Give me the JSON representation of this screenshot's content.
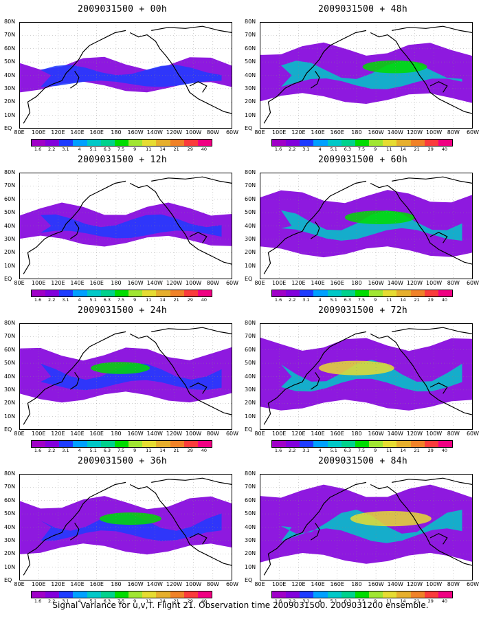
{
  "footer": "Signal Variance for u,v,T. Flight 21. Observation time 2009031500. 2009031200 ensemble.",
  "colorbar": {
    "labels": [
      "1.6",
      "2.2",
      "3.1",
      "4",
      "5.1",
      "6.3",
      "7.5",
      "9",
      "11",
      "14",
      "21",
      "29",
      "40"
    ],
    "colors": [
      "#a000c8",
      "#8200dc",
      "#1e3cff",
      "#00a0ff",
      "#00c8c8",
      "#00d28c",
      "#00dc00",
      "#a0e632",
      "#e6dc32",
      "#e6af2d",
      "#f08228",
      "#fa3c3c",
      "#f00082"
    ]
  },
  "map": {
    "lat_labels": [
      "80N",
      "70N",
      "60N",
      "50N",
      "40N",
      "30N",
      "20N",
      "10N",
      "EQ"
    ],
    "lon_labels": [
      "80E",
      "100E",
      "120E",
      "140E",
      "160E",
      "180",
      "160W",
      "140W",
      "120W",
      "100W",
      "80W",
      "60W"
    ]
  },
  "panels": [
    {
      "title": "2009031500 + 00h",
      "fill": 0.12
    },
    {
      "title": "2009031500 + 48h",
      "fill": 0.55
    },
    {
      "title": "2009031500 + 12h",
      "fill": 0.25
    },
    {
      "title": "2009031500 + 60h",
      "fill": 0.65
    },
    {
      "title": "2009031500 + 24h",
      "fill": 0.45
    },
    {
      "title": "2009031500 + 72h",
      "fill": 0.75
    },
    {
      "title": "2009031500 + 36h",
      "fill": 0.5
    },
    {
      "title": "2009031500 + 84h",
      "fill": 0.85
    }
  ]
}
